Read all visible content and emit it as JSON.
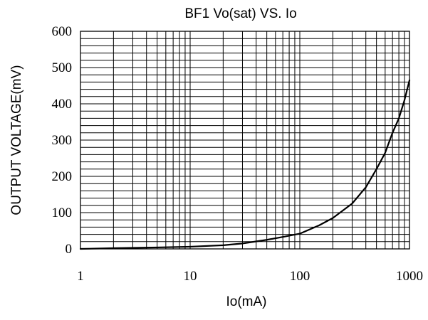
{
  "chart_data": {
    "type": "line",
    "title": "BF1  Vo(sat) VS. Io",
    "xlabel": "Io(mA)",
    "ylabel": "OUTPUT VOLTAGE(mV)",
    "x_scale": "log",
    "xlim": [
      1,
      1000
    ],
    "ylim": [
      0,
      600
    ],
    "grid": true,
    "legend": "none",
    "x_ticks": [
      1,
      10,
      100,
      1000
    ],
    "x_tick_labels": [
      "1",
      "10",
      "100",
      "1000"
    ],
    "y_ticks": [
      0,
      100,
      200,
      300,
      400,
      500,
      600
    ],
    "y_tick_labels": [
      "0",
      "100",
      "200",
      "300",
      "400",
      "500",
      "600"
    ],
    "y_minor_step": 20,
    "line_color": "#000000",
    "series": [
      {
        "x": [
          1,
          2,
          5,
          10,
          20,
          30,
          50,
          70,
          100,
          150,
          200,
          300,
          400,
          500,
          600,
          700,
          800,
          900,
          1000
        ],
        "y": [
          0,
          2,
          4,
          6,
          10,
          15,
          25,
          33,
          42,
          65,
          85,
          125,
          170,
          220,
          265,
          320,
          360,
          410,
          465
        ]
      }
    ]
  }
}
